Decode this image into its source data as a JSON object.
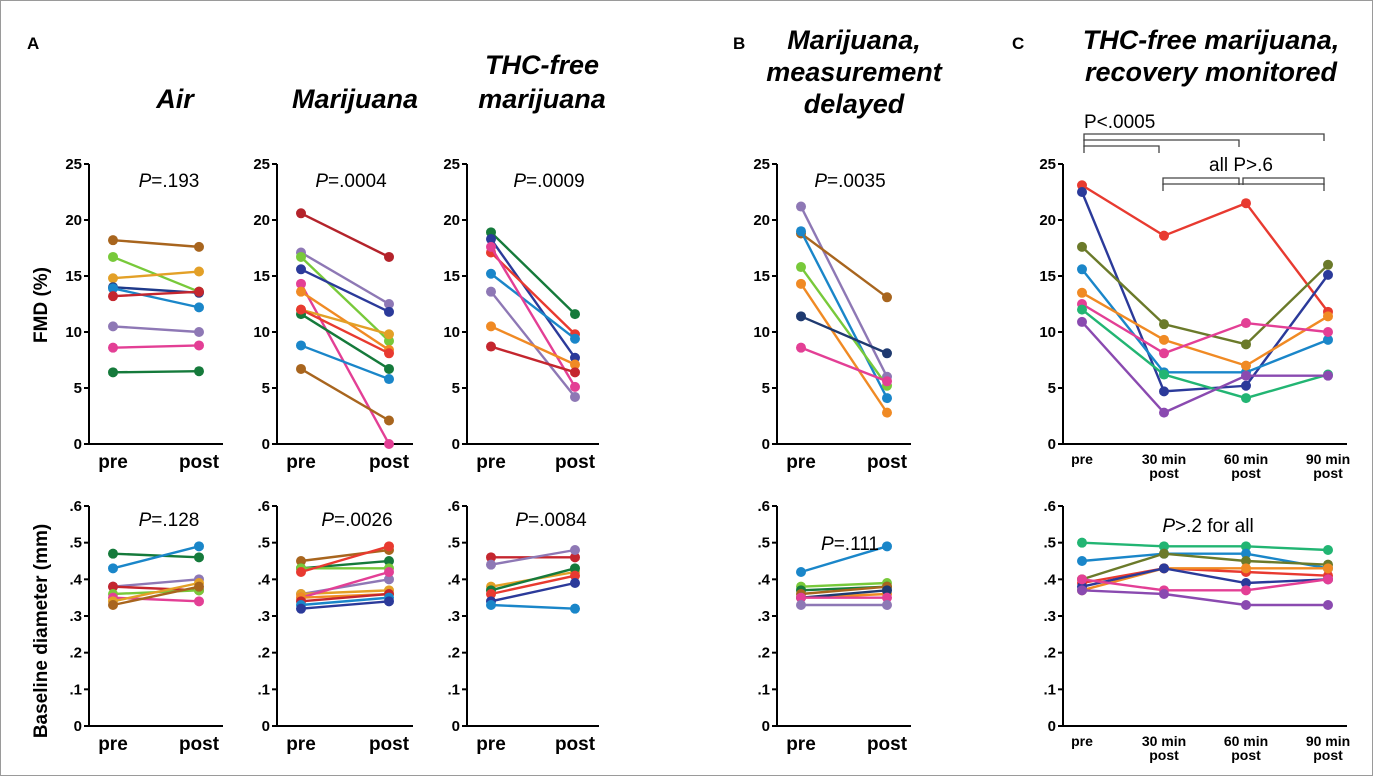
{
  "labels": {
    "A": "A",
    "B": "B",
    "C": "C",
    "title_air": "Air",
    "title_mj": "Marijuana",
    "title_thc_1": "THC-free",
    "title_thc_2": "marijuana",
    "title_b_1": "Marijuana,",
    "title_b_2": "measurement",
    "title_b_3": "delayed",
    "title_c_1": "THC-free marijuana,",
    "title_c_2": "recovery monitored",
    "ylabel_fmd": "FMD (%)",
    "ylabel_diam": "Baseline diameter (mm)",
    "p_lt_0005": "P<.0005",
    "p_all_gt": "all P>.6"
  },
  "chart_data": [
    {
      "id": "air_fmd",
      "type": "line",
      "title": "Air",
      "ylabel": "FMD (%)",
      "categories": [
        "pre",
        "post"
      ],
      "ylim": [
        0,
        25
      ],
      "yticks": [
        "0",
        "5",
        "10",
        "15",
        "20",
        "25"
      ],
      "pvalue": "P=.193",
      "series": [
        {
          "color": "#a8651e",
          "values": [
            18.2,
            17.6
          ]
        },
        {
          "color": "#78c93a",
          "values": [
            16.7,
            13.6
          ]
        },
        {
          "color": "#e3a027",
          "values": [
            14.8,
            15.4
          ]
        },
        {
          "color": "#1f3a8a",
          "values": [
            14.0,
            13.5
          ]
        },
        {
          "color": "#1a86c9",
          "values": [
            13.9,
            12.2
          ]
        },
        {
          "color": "#c4262e",
          "values": [
            13.2,
            13.6
          ]
        },
        {
          "color": "#8e78b5",
          "values": [
            10.5,
            10.0
          ]
        },
        {
          "color": "#e33f95",
          "values": [
            8.6,
            8.8
          ]
        },
        {
          "color": "#157a3b",
          "values": [
            6.4,
            6.5
          ]
        }
      ]
    },
    {
      "id": "mj_fmd",
      "type": "line",
      "title": "Marijuana",
      "ylabel": "FMD (%)",
      "categories": [
        "pre",
        "post"
      ],
      "ylim": [
        0,
        25
      ],
      "yticks": [
        "0",
        "5",
        "10",
        "15",
        "20",
        "25"
      ],
      "pvalue": "P=.0004",
      "series": [
        {
          "color": "#b4232b",
          "values": [
            20.6,
            16.7
          ]
        },
        {
          "color": "#8e78b5",
          "values": [
            17.1,
            12.5
          ]
        },
        {
          "color": "#78c93a",
          "values": [
            16.7,
            9.2
          ]
        },
        {
          "color": "#2b3a9a",
          "values": [
            15.6,
            11.8
          ]
        },
        {
          "color": "#e33f95",
          "values": [
            14.3,
            0
          ]
        },
        {
          "color": "#f08a24",
          "values": [
            13.6,
            8.4
          ]
        },
        {
          "color": "#e3a027",
          "values": [
            12.0,
            9.8
          ]
        },
        {
          "color": "#157a3b",
          "values": [
            11.6,
            6.7
          ]
        },
        {
          "color": "#e83a30",
          "values": [
            12.0,
            8.1
          ]
        },
        {
          "color": "#1a86c9",
          "values": [
            8.8,
            5.8
          ]
        },
        {
          "color": "#a8651e",
          "values": [
            6.7,
            2.1
          ]
        }
      ]
    },
    {
      "id": "thc_fmd",
      "type": "line",
      "title": "THC-free marijuana",
      "ylabel": "FMD (%)",
      "categories": [
        "pre",
        "post"
      ],
      "ylim": [
        0,
        25
      ],
      "yticks": [
        "0",
        "5",
        "10",
        "15",
        "20",
        "25"
      ],
      "pvalue": "P=.0009",
      "series": [
        {
          "color": "#157a3b",
          "values": [
            18.9,
            11.6
          ]
        },
        {
          "color": "#2b3a9a",
          "values": [
            18.3,
            7.7
          ]
        },
        {
          "color": "#e83a30",
          "values": [
            17.1,
            9.8
          ]
        },
        {
          "color": "#1a86c9",
          "values": [
            15.2,
            9.4
          ]
        },
        {
          "color": "#e33f95",
          "values": [
            17.6,
            5.1
          ]
        },
        {
          "color": "#8e78b5",
          "values": [
            13.6,
            4.2
          ]
        },
        {
          "color": "#f08a24",
          "values": [
            10.5,
            7.1
          ]
        },
        {
          "color": "#c4262e",
          "values": [
            8.7,
            6.4
          ]
        }
      ]
    },
    {
      "id": "b_fmd",
      "type": "line",
      "title": "Marijuana, measurement delayed",
      "ylabel": "FMD (%)",
      "categories": [
        "pre",
        "post"
      ],
      "ylim": [
        0,
        25
      ],
      "yticks": [
        "0",
        "5",
        "10",
        "15",
        "20",
        "25"
      ],
      "pvalue": "P=.0035",
      "series": [
        {
          "color": "#8e78b5",
          "values": [
            21.2,
            6.0
          ]
        },
        {
          "color": "#a8651e",
          "values": [
            18.8,
            13.1
          ]
        },
        {
          "color": "#1a86c9",
          "values": [
            19.0,
            4.1
          ]
        },
        {
          "color": "#78c93a",
          "values": [
            15.8,
            5.2
          ]
        },
        {
          "color": "#f08a24",
          "values": [
            14.3,
            2.8
          ]
        },
        {
          "color": "#1f3a70",
          "values": [
            11.4,
            8.1
          ]
        },
        {
          "color": "#e33f95",
          "values": [
            8.6,
            5.6
          ]
        }
      ]
    },
    {
      "id": "c_fmd",
      "type": "line",
      "title": "THC-free marijuana, recovery monitored",
      "ylabel": "FMD (%)",
      "categories": [
        "pre",
        "30 min post",
        "60 min post",
        "90 min post"
      ],
      "ylim": [
        0,
        25
      ],
      "yticks": [
        "0",
        "5",
        "10",
        "15",
        "20",
        "25"
      ],
      "pvalue": "",
      "series": [
        {
          "color": "#e83a30",
          "values": [
            23.1,
            18.6,
            21.5,
            11.8
          ]
        },
        {
          "color": "#2b3a9a",
          "values": [
            22.5,
            4.7,
            5.2,
            15.1
          ]
        },
        {
          "color": "#6b7a2a",
          "values": [
            17.6,
            10.7,
            8.9,
            16.0
          ]
        },
        {
          "color": "#1a86c9",
          "values": [
            15.6,
            6.4,
            6.4,
            9.3
          ]
        },
        {
          "color": "#f08a24",
          "values": [
            13.5,
            9.3,
            7.0,
            11.4
          ]
        },
        {
          "color": "#e33f95",
          "values": [
            12.5,
            8.1,
            10.8,
            10.0
          ]
        },
        {
          "color": "#22b573",
          "values": [
            12.0,
            6.2,
            4.1,
            6.2
          ]
        },
        {
          "color": "#8a4ab0",
          "values": [
            10.9,
            2.8,
            6.1,
            6.1
          ]
        }
      ]
    },
    {
      "id": "air_diam",
      "type": "line",
      "ylabel": "Baseline diameter (mm)",
      "categories": [
        "pre",
        "post"
      ],
      "ylim": [
        0,
        0.6
      ],
      "yticks": [
        "0",
        ".1",
        ".2",
        ".3",
        ".4",
        ".5",
        ".6"
      ],
      "pvalue": "P=.128",
      "series": [
        {
          "color": "#157a3b",
          "values": [
            0.47,
            0.46
          ]
        },
        {
          "color": "#1a86c9",
          "values": [
            0.43,
            0.49
          ]
        },
        {
          "color": "#8e78b5",
          "values": [
            0.38,
            0.4
          ]
        },
        {
          "color": "#c4262e",
          "values": [
            0.38,
            0.37
          ]
        },
        {
          "color": "#78c93a",
          "values": [
            0.36,
            0.37
          ]
        },
        {
          "color": "#e33f95",
          "values": [
            0.35,
            0.34
          ]
        },
        {
          "color": "#e3a027",
          "values": [
            0.34,
            0.39
          ]
        },
        {
          "color": "#a8651e",
          "values": [
            0.33,
            0.38
          ]
        }
      ]
    },
    {
      "id": "mj_diam",
      "type": "line",
      "ylabel": "Baseline diameter (mm)",
      "categories": [
        "pre",
        "post"
      ],
      "ylim": [
        0,
        0.6
      ],
      "yticks": [
        "0",
        ".1",
        ".2",
        ".3",
        ".4",
        ".5",
        ".6"
      ],
      "pvalue": "P=.0026",
      "series": [
        {
          "color": "#a8651e",
          "values": [
            0.45,
            0.48
          ]
        },
        {
          "color": "#157a3b",
          "values": [
            0.43,
            0.45
          ]
        },
        {
          "color": "#78c93a",
          "values": [
            0.43,
            0.43
          ]
        },
        {
          "color": "#e83a30",
          "values": [
            0.42,
            0.49
          ]
        },
        {
          "color": "#8e78b5",
          "values": [
            0.36,
            0.4
          ]
        },
        {
          "color": "#e3a027",
          "values": [
            0.36,
            0.37
          ]
        },
        {
          "color": "#e33f95",
          "values": [
            0.35,
            0.42
          ]
        },
        {
          "color": "#f08a24",
          "values": [
            0.35,
            0.36
          ]
        },
        {
          "color": "#c4262e",
          "values": [
            0.34,
            0.36
          ]
        },
        {
          "color": "#1a86c9",
          "values": [
            0.33,
            0.35
          ]
        },
        {
          "color": "#2b3a9a",
          "values": [
            0.32,
            0.34
          ]
        }
      ]
    },
    {
      "id": "thc_diam",
      "type": "line",
      "ylabel": "Baseline diameter (mm)",
      "categories": [
        "pre",
        "post"
      ],
      "ylim": [
        0,
        0.6
      ],
      "yticks": [
        "0",
        ".1",
        ".2",
        ".3",
        ".4",
        ".5",
        ".6"
      ],
      "pvalue": "P=.0084",
      "series": [
        {
          "color": "#c4262e",
          "values": [
            0.46,
            0.46
          ]
        },
        {
          "color": "#8e78b5",
          "values": [
            0.44,
            0.48
          ]
        },
        {
          "color": "#e3a027",
          "values": [
            0.38,
            0.42
          ]
        },
        {
          "color": "#157a3b",
          "values": [
            0.37,
            0.43
          ]
        },
        {
          "color": "#e83a30",
          "values": [
            0.36,
            0.41
          ]
        },
        {
          "color": "#2b3a9a",
          "values": [
            0.34,
            0.39
          ]
        },
        {
          "color": "#1a86c9",
          "values": [
            0.33,
            0.32
          ]
        }
      ]
    },
    {
      "id": "b_diam",
      "type": "line",
      "ylabel": "Baseline diameter (mm)",
      "categories": [
        "pre",
        "post"
      ],
      "ylim": [
        0,
        0.6
      ],
      "yticks": [
        "0",
        ".1",
        ".2",
        ".3",
        ".4",
        ".5",
        ".6"
      ],
      "pvalue": "P=.111",
      "series": [
        {
          "color": "#1a86c9",
          "values": [
            0.42,
            0.49
          ]
        },
        {
          "color": "#78c93a",
          "values": [
            0.38,
            0.39
          ]
        },
        {
          "color": "#157a3b",
          "values": [
            0.37,
            0.38
          ]
        },
        {
          "color": "#a8651e",
          "values": [
            0.36,
            0.38
          ]
        },
        {
          "color": "#f08a24",
          "values": [
            0.35,
            0.36
          ]
        },
        {
          "color": "#1f3a70",
          "values": [
            0.35,
            0.37
          ]
        },
        {
          "color": "#e33f95",
          "values": [
            0.35,
            0.35
          ]
        },
        {
          "color": "#8e78b5",
          "values": [
            0.33,
            0.33
          ]
        }
      ]
    },
    {
      "id": "c_diam",
      "type": "line",
      "ylabel": "Baseline diameter (mm)",
      "categories": [
        "pre",
        "30 min post",
        "60 min post",
        "90 min post"
      ],
      "ylim": [
        0,
        0.6
      ],
      "yticks": [
        "0",
        ".1",
        ".2",
        ".3",
        ".4",
        ".5",
        ".6"
      ],
      "pvalue": "P>.2 for all",
      "series": [
        {
          "color": "#22b573",
          "values": [
            0.5,
            0.49,
            0.49,
            0.48
          ]
        },
        {
          "color": "#1a86c9",
          "values": [
            0.45,
            0.47,
            0.47,
            0.43
          ]
        },
        {
          "color": "#6b7a2a",
          "values": [
            0.4,
            0.47,
            0.45,
            0.44
          ]
        },
        {
          "color": "#e83a30",
          "values": [
            0.39,
            0.43,
            0.42,
            0.41
          ]
        },
        {
          "color": "#f08a24",
          "values": [
            0.37,
            0.43,
            0.43,
            0.43
          ]
        },
        {
          "color": "#2b3a9a",
          "values": [
            0.38,
            0.43,
            0.39,
            0.4
          ]
        },
        {
          "color": "#e33f95",
          "values": [
            0.4,
            0.37,
            0.37,
            0.4
          ]
        },
        {
          "color": "#8a4ab0",
          "values": [
            0.37,
            0.36,
            0.33,
            0.33
          ]
        }
      ]
    }
  ]
}
